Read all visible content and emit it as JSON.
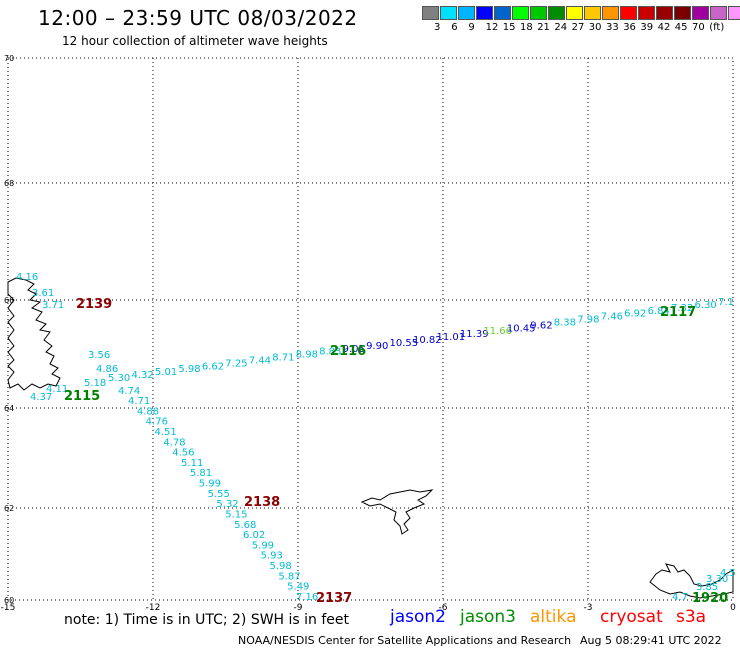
{
  "header": {
    "title": "12:00 – 23:59 UTC 08/03/2022",
    "subtitle": "12 hour collection of altimeter wave heights"
  },
  "scale": {
    "colors": [
      "#808080",
      "#00e0ff",
      "#00b4ff",
      "#0000ff",
      "#0064c8",
      "#00ff00",
      "#00c800",
      "#008c00",
      "#ffff00",
      "#ffc800",
      "#ff9600",
      "#ff0000",
      "#c80000",
      "#960000",
      "#780000",
      "#a000a0",
      "#c864c8",
      "#ff96ff",
      "#000000"
    ],
    "labels": [
      "3",
      "6",
      "9",
      "12",
      "15",
      "18",
      "21",
      "24",
      "27",
      "30",
      "33",
      "36",
      "39",
      "42",
      "45",
      "70",
      "(ft)"
    ]
  },
  "axes": {
    "lat_ticks": [
      "70",
      "68",
      "66",
      "64",
      "62",
      "60"
    ],
    "lon_ticks": [
      "-15",
      "-12",
      "-9",
      "-6",
      "-3",
      "0"
    ]
  },
  "passes": [
    {
      "id": "2139",
      "color": "#8b0000",
      "sat": "cryosat"
    },
    {
      "id": "2116",
      "color": "#008000",
      "sat": "jason3"
    },
    {
      "id": "2115",
      "color": "#008000",
      "sat": "jason3"
    },
    {
      "id": "2117",
      "color": "#008000",
      "sat": "jason3"
    },
    {
      "id": "2138",
      "color": "#8b0000",
      "sat": "cryosat"
    },
    {
      "id": "2137",
      "color": "#8b0000",
      "sat": "cryosat"
    },
    {
      "id": "1920",
      "color": "#008000",
      "sat": "jason3"
    }
  ],
  "track_values": {
    "northwest": [
      "4.16",
      "3.61",
      "3.71"
    ],
    "east_track": [
      "3.56",
      "4.86",
      "5.30",
      "4.32",
      "5.01",
      "5.98",
      "6.62",
      "7.25",
      "7.44",
      "8.71",
      "8.98",
      "8.83",
      "9.05",
      "9.90",
      "10.55",
      "10.82",
      "11.01",
      "11.39",
      "11.66",
      "10.45",
      "9.62",
      "8.38",
      "7.98",
      "7.46",
      "6.92",
      "6.84",
      "7.32",
      "6.30",
      "7.1"
    ],
    "southwest": [
      "4.37",
      "4.11",
      "5.18",
      "4.74",
      "4.71",
      "4.88",
      "4.76",
      "4.51",
      "4.78",
      "4.56",
      "5.11",
      "5.81",
      "5.99",
      "5.55",
      "5.32",
      "5.15",
      "5.68",
      "6.02",
      "5.99",
      "5.93",
      "5.98",
      "5.87",
      "5.49",
      "7.16"
    ],
    "southeast": [
      "4.7",
      "3.85",
      "3.30",
      "4.5"
    ]
  },
  "note": "note: 1) Time is in UTC; 2) SWH is in feet",
  "satellites": [
    {
      "name": "jason2",
      "color": "#0000ff"
    },
    {
      "name": "jason3",
      "color": "#008c00"
    },
    {
      "name": "altika",
      "color": "#ff9600"
    },
    {
      "name": "cryosat",
      "color": "#ff0000"
    },
    {
      "name": "s3a",
      "color": "#ff0000"
    }
  ],
  "footer": {
    "center": "NOAA/NESDIS Center for Satellite Applications and Research",
    "timestamp": "Aug  5 08:29:41 UTC 2022"
  }
}
